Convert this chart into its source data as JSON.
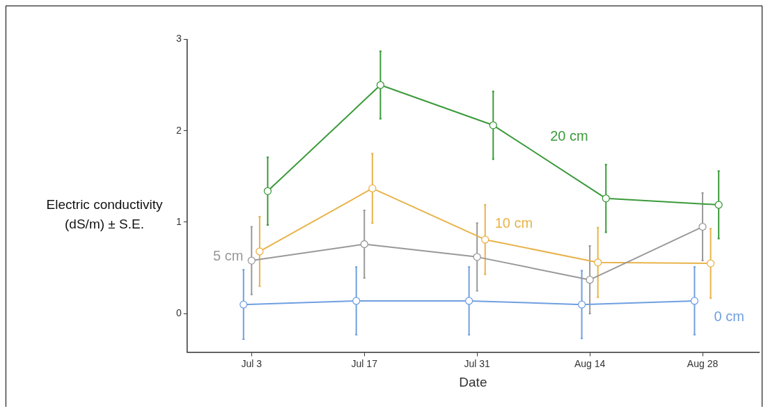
{
  "chart_data": {
    "type": "line",
    "xlabel": "Date",
    "ylabel": "Electric conductivity\n(dS/m) ± S.E.",
    "xlim": [
      "--06-25",
      "--09-04"
    ],
    "xticks": [
      {
        "value": "--07-03",
        "label": "Jul 3"
      },
      {
        "value": "--07-17",
        "label": "Jul 17"
      },
      {
        "value": "--07-31",
        "label": "Jul 31"
      },
      {
        "value": "--08-14",
        "label": "Aug 14"
      },
      {
        "value": "--08-28",
        "label": "Aug 28"
      }
    ],
    "ylim": [
      -0.42,
      3
    ],
    "yticks": [
      0,
      1,
      2,
      3
    ],
    "grid": false,
    "legend": false,
    "marker": "circle",
    "line_style": "solid",
    "series": [
      {
        "name": "0 cm",
        "color": "#6f9fe0",
        "x": [
          "--07-02",
          "--07-16",
          "--07-30",
          "--08-13",
          "--08-27"
        ],
        "values": [
          0.1,
          0.14,
          0.14,
          0.1,
          0.14
        ],
        "errors": [
          0.38,
          0.37,
          0.37,
          0.37,
          0.37
        ]
      },
      {
        "name": "5 cm",
        "color": "#999999",
        "x": [
          "--07-03",
          "--07-17",
          "--07-31",
          "--08-14",
          "--08-28"
        ],
        "values": [
          0.58,
          0.76,
          0.62,
          0.37,
          0.95
        ],
        "errors": [
          0.37,
          0.37,
          0.37,
          0.37,
          0.37
        ]
      },
      {
        "name": "10 cm",
        "color": "#e8b34a",
        "x": [
          "--07-04",
          "--07-18",
          "--08-01",
          "--08-15",
          "--08-29"
        ],
        "values": [
          0.68,
          1.37,
          0.81,
          0.56,
          0.55
        ],
        "errors": [
          0.38,
          0.38,
          0.38,
          0.38,
          0.38
        ]
      },
      {
        "name": "20 cm",
        "color": "#3a9a3a",
        "x": [
          "--07-05",
          "--07-19",
          "--08-02",
          "--08-16",
          "--08-30"
        ],
        "values": [
          1.34,
          2.5,
          2.06,
          1.26,
          1.19
        ],
        "errors": [
          0.37,
          0.37,
          0.37,
          0.37,
          0.37
        ]
      }
    ]
  }
}
